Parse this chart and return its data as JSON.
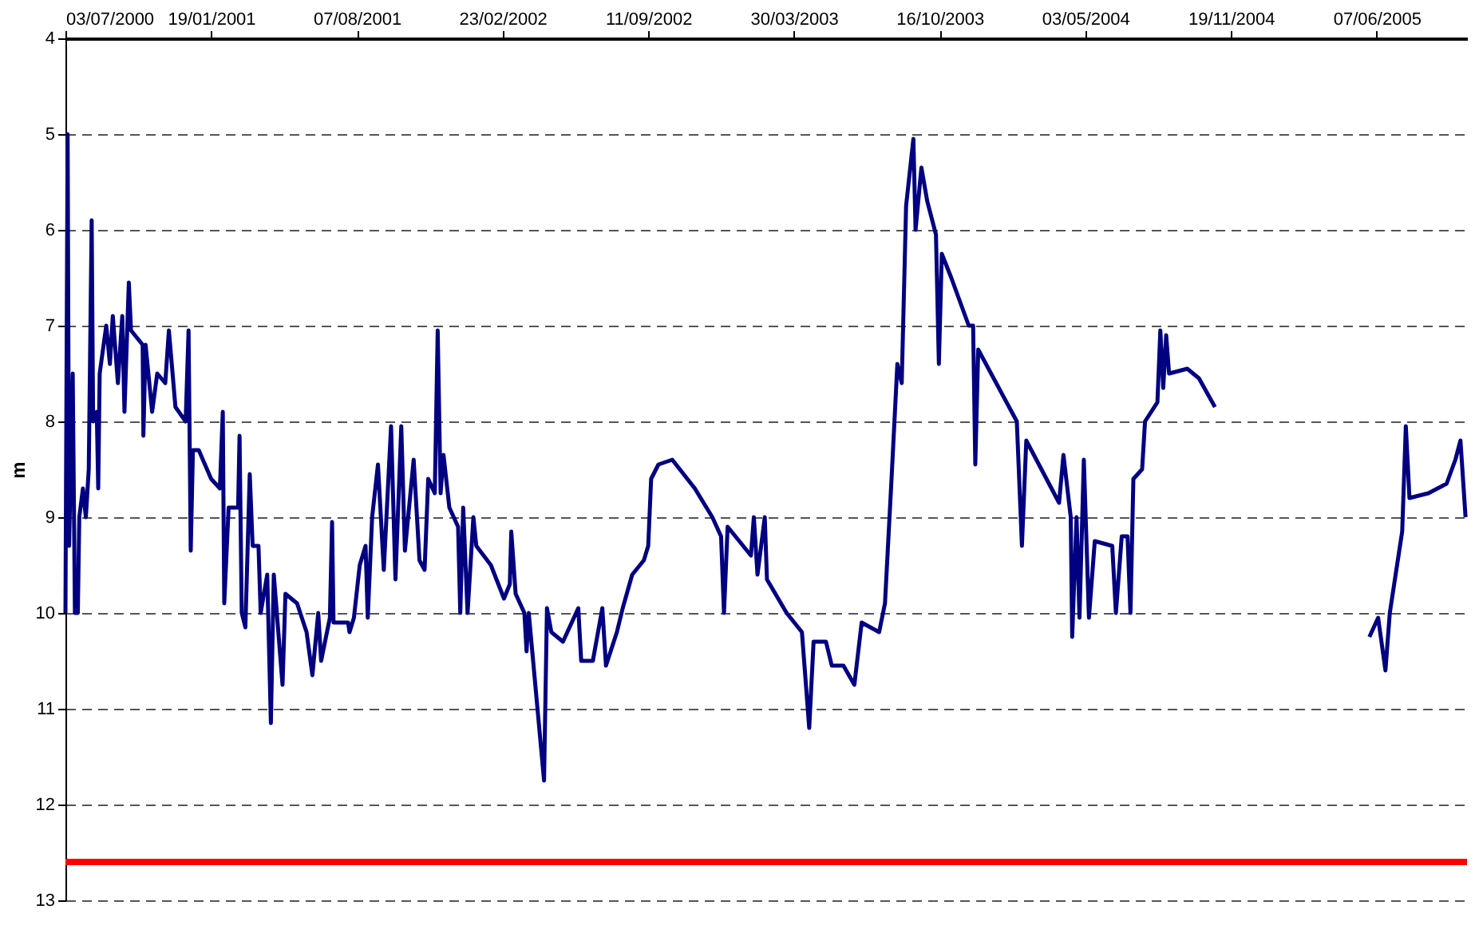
{
  "chart_data": {
    "type": "line",
    "ylabel": "m",
    "grid": "y",
    "line_style": "solid",
    "marker": "none",
    "xlim": [
      "2000-07-03",
      "2005-10-09"
    ],
    "ylim": [
      13,
      4
    ],
    "yticks": [
      4,
      5,
      6,
      7,
      8,
      9,
      10,
      11,
      12,
      13
    ],
    "xticks": [
      {
        "value": "2000-07-03",
        "label": "03/07/2000"
      },
      {
        "value": "2001-01-19",
        "label": "19/01/2001"
      },
      {
        "value": "2001-08-07",
        "label": "07/08/2001"
      },
      {
        "value": "2002-02-23",
        "label": "23/02/2002"
      },
      {
        "value": "2002-09-11",
        "label": "11/09/2002"
      },
      {
        "value": "2003-03-30",
        "label": "30/03/2003"
      },
      {
        "value": "2003-10-16",
        "label": "16/10/2003"
      },
      {
        "value": "2004-05-03",
        "label": "03/05/2004"
      },
      {
        "value": "2004-11-19",
        "label": "19/11/2004"
      },
      {
        "value": "2005-06-07",
        "label": "07/06/2005"
      }
    ],
    "ref_lines": [
      {
        "axis": "y",
        "value": 12.6,
        "color": "#ff0000"
      }
    ],
    "series": [
      {
        "color": "#000080",
        "x": [
          "2000-07-03",
          "2000-07-06",
          "2000-07-08",
          "2000-07-13",
          "2000-07-16",
          "2000-07-20",
          "2000-07-22",
          "2000-07-27",
          "2000-07-31",
          "2000-08-04",
          "2000-08-08",
          "2000-08-10",
          "2000-08-15",
          "2000-08-17",
          "2000-08-19",
          "2000-08-28",
          "2000-09-02",
          "2000-09-06",
          "2000-09-13",
          "2000-09-19",
          "2000-09-22",
          "2000-09-28",
          "2000-10-01",
          "2000-10-17",
          "2000-10-18",
          "2000-10-21",
          "2000-10-30",
          "2000-11-06",
          "2000-11-17",
          "2000-11-22",
          "2000-12-01",
          "2000-12-15",
          "2000-12-19",
          "2000-12-22",
          "2000-12-25",
          "2001-01-02",
          "2001-01-19",
          "2001-01-31",
          "2001-02-04",
          "2001-02-06",
          "2001-02-12",
          "2001-02-25",
          "2001-02-27",
          "2001-03-02",
          "2001-03-07",
          "2001-03-13",
          "2001-03-17",
          "2001-03-25",
          "2001-03-28",
          "2001-04-06",
          "2001-04-11",
          "2001-04-15",
          "2001-04-27",
          "2001-05-01",
          "2001-05-17",
          "2001-05-30",
          "2001-06-07",
          "2001-06-15",
          "2001-06-19",
          "2001-07-01",
          "2001-07-04",
          "2001-07-06",
          "2001-07-26",
          "2001-07-28",
          "2001-08-03",
          "2001-08-11",
          "2001-08-19",
          "2001-08-22",
          "2001-08-28",
          "2001-09-05",
          "2001-09-13",
          "2001-09-23",
          "2001-09-29",
          "2001-10-07",
          "2001-10-12",
          "2001-10-24",
          "2001-11-01",
          "2001-11-08",
          "2001-11-13",
          "2001-11-22",
          "2001-11-26",
          "2001-11-30",
          "2001-12-04",
          "2001-12-12",
          "2001-12-24",
          "2001-12-27",
          "2001-12-31",
          "2002-01-06",
          "2002-01-14",
          "2002-01-18",
          "2002-02-07",
          "2002-02-25",
          "2002-03-05",
          "2002-03-07",
          "2002-03-13",
          "2002-03-25",
          "2002-03-28",
          "2002-03-31",
          "2002-04-21",
          "2002-04-25",
          "2002-05-01",
          "2002-05-17",
          "2002-06-07",
          "2002-06-11",
          "2002-06-27",
          "2002-07-10",
          "2002-07-15",
          "2002-07-30",
          "2002-08-07",
          "2002-08-20",
          "2002-09-05",
          "2002-09-11",
          "2002-09-15",
          "2002-09-25",
          "2002-10-14",
          "2002-11-14",
          "2002-12-08",
          "2002-12-20",
          "2002-12-24",
          "2002-12-29",
          "2003-01-30",
          "2003-02-03",
          "2003-02-08",
          "2003-02-18",
          "2003-02-21",
          "2003-03-20",
          "2003-04-10",
          "2003-04-20",
          "2003-04-26",
          "2003-05-13",
          "2003-05-21",
          "2003-06-06",
          "2003-06-21",
          "2003-07-01",
          "2003-07-25",
          "2003-08-02",
          "2003-08-11",
          "2003-08-19",
          "2003-08-25",
          "2003-08-31",
          "2003-09-10",
          "2003-09-13",
          "2003-09-21",
          "2003-09-29",
          "2003-10-11",
          "2003-10-15",
          "2003-10-19",
          "2003-11-01",
          "2003-11-25",
          "2003-12-01",
          "2003-12-04",
          "2003-12-08",
          "2004-01-30",
          "2004-02-06",
          "2004-02-12",
          "2004-03-28",
          "2004-04-03",
          "2004-04-13",
          "2004-04-15",
          "2004-04-21",
          "2004-04-25",
          "2004-05-01",
          "2004-05-08",
          "2004-05-16",
          "2004-06-09",
          "2004-06-14",
          "2004-06-22",
          "2004-06-30",
          "2004-07-04",
          "2004-07-08",
          "2004-07-20",
          "2004-07-24",
          "2004-08-10",
          "2004-08-14",
          "2004-08-18",
          "2004-08-22",
          "2004-08-26",
          "2004-09-20",
          "2004-10-06",
          "2004-10-28",
          "2005-03-01",
          "2005-05-28",
          "2005-06-09",
          "2005-06-19",
          "2005-06-25",
          "2005-07-12",
          "2005-07-17",
          "2005-07-22",
          "2005-08-17",
          "2005-09-11",
          "2005-09-23",
          "2005-09-30",
          "2005-10-07"
        ],
        "values": [
          10.0,
          5.0,
          9.3,
          7.5,
          10.0,
          10.0,
          9.0,
          8.7,
          9.0,
          8.5,
          5.9,
          8.0,
          7.9,
          8.7,
          7.5,
          7.0,
          7.4,
          6.9,
          7.6,
          6.9,
          7.9,
          6.55,
          7.05,
          7.2,
          8.15,
          7.2,
          7.9,
          7.5,
          7.6,
          7.05,
          7.85,
          8.0,
          7.05,
          9.35,
          8.3,
          8.3,
          8.6,
          8.7,
          7.9,
          9.9,
          8.9,
          8.9,
          8.15,
          10.0,
          10.15,
          8.55,
          9.3,
          9.3,
          10.0,
          9.6,
          11.15,
          9.6,
          10.75,
          9.8,
          9.9,
          10.2,
          10.65,
          10.0,
          10.5,
          10.05,
          9.05,
          10.1,
          10.1,
          10.2,
          10.05,
          9.5,
          9.3,
          10.05,
          9.0,
          8.45,
          9.55,
          8.05,
          9.65,
          8.05,
          9.35,
          8.4,
          9.45,
          9.55,
          8.6,
          8.75,
          7.05,
          8.75,
          8.35,
          8.9,
          9.1,
          10.0,
          8.9,
          10.0,
          9.0,
          9.3,
          9.5,
          9.85,
          9.7,
          9.15,
          9.8,
          10.0,
          10.4,
          10.0,
          11.75,
          9.95,
          10.2,
          10.3,
          9.95,
          10.5,
          10.5,
          9.95,
          10.55,
          10.2,
          9.95,
          9.6,
          9.45,
          9.3,
          8.6,
          8.45,
          8.4,
          8.7,
          9.0,
          9.2,
          10.0,
          9.1,
          9.4,
          9.0,
          9.6,
          9.0,
          9.65,
          10.0,
          10.2,
          11.2,
          10.3,
          10.3,
          10.55,
          10.55,
          10.75,
          10.1,
          10.2,
          9.9,
          8.6,
          7.4,
          7.6,
          5.75,
          5.05,
          6.0,
          5.35,
          5.7,
          6.05,
          7.4,
          6.25,
          6.5,
          7.0,
          7.0,
          8.45,
          7.25,
          8.0,
          9.3,
          8.2,
          8.85,
          8.35,
          9.0,
          10.25,
          9.0,
          10.05,
          8.4,
          10.05,
          9.25,
          9.3,
          10.0,
          9.2,
          9.2,
          10.0,
          8.6,
          8.5,
          8.0,
          7.8,
          7.05,
          7.65,
          7.1,
          7.5,
          7.45,
          7.55,
          7.85,
          null,
          10.25,
          10.05,
          10.6,
          10.0,
          9.15,
          8.05,
          8.8,
          8.75,
          8.65,
          8.4,
          8.2,
          9.0
        ]
      }
    ]
  }
}
